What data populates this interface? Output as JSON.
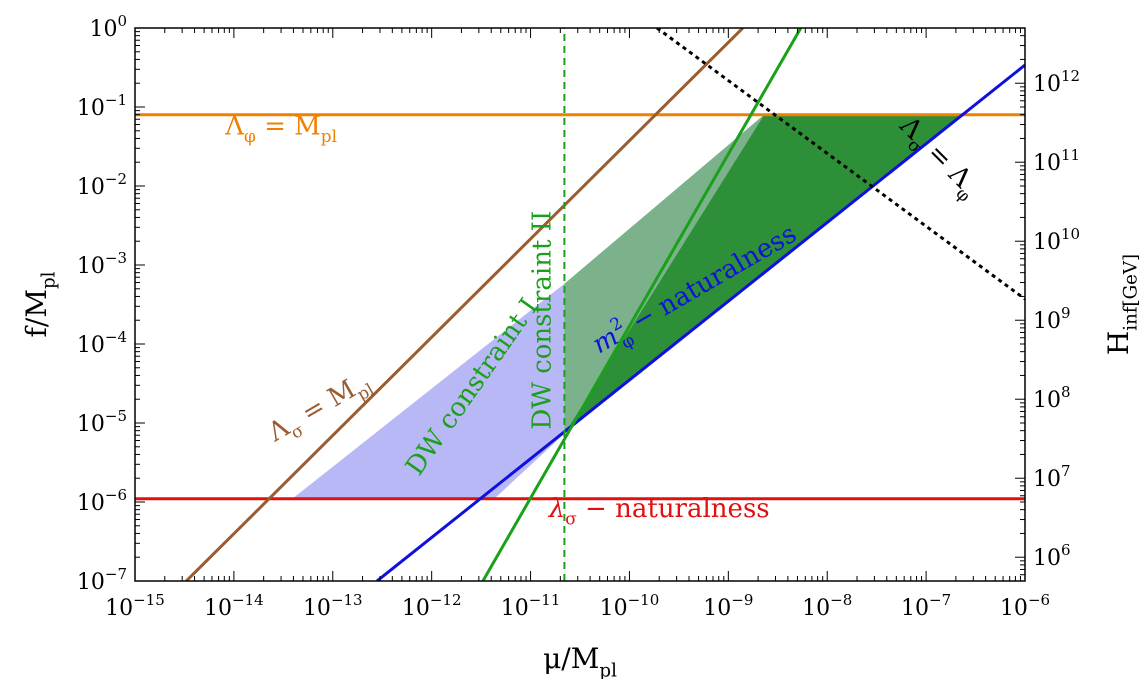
{
  "chart_data": {
    "type": "line",
    "x_axis": {
      "label": "μ/M_pl",
      "scale": "log",
      "range": [
        1e-15,
        1e-06
      ],
      "ticks": [
        {
          "value": 1e-15,
          "base": "10",
          "exp": "−15"
        },
        {
          "value": 1e-14,
          "base": "10",
          "exp": "−14"
        },
        {
          "value": 1e-13,
          "base": "10",
          "exp": "−13"
        },
        {
          "value": 1e-12,
          "base": "10",
          "exp": "−12"
        },
        {
          "value": 1e-11,
          "base": "10",
          "exp": "−11"
        },
        {
          "value": 1e-10,
          "base": "10",
          "exp": "−10"
        },
        {
          "value": 1e-09,
          "base": "10",
          "exp": "−9"
        },
        {
          "value": 1e-08,
          "base": "10",
          "exp": "−8"
        },
        {
          "value": 1e-07,
          "base": "10",
          "exp": "−7"
        },
        {
          "value": 1e-06,
          "base": "10",
          "exp": "−6"
        }
      ]
    },
    "y_axis": {
      "label": "f/M_pl",
      "scale": "log",
      "range": [
        1e-07,
        1
      ],
      "ticks": [
        {
          "value": 1,
          "base": "10",
          "exp": "0"
        },
        {
          "value": 0.1,
          "base": "10",
          "exp": "−1"
        },
        {
          "value": 0.01,
          "base": "10",
          "exp": "−2"
        },
        {
          "value": 0.001,
          "base": "10",
          "exp": "−3"
        },
        {
          "value": 0.0001,
          "base": "10",
          "exp": "−4"
        },
        {
          "value": 1e-05,
          "base": "10",
          "exp": "−5"
        },
        {
          "value": 1e-06,
          "base": "10",
          "exp": "−6"
        },
        {
          "value": 1e-07,
          "base": "10",
          "exp": "−7"
        }
      ]
    },
    "y2_axis": {
      "label": "H_inf[GeV]",
      "ticks": [
        {
          "at_y": 0.2,
          "base": "10",
          "exp": "12"
        },
        {
          "at_y": 0.02,
          "base": "10",
          "exp": "11"
        },
        {
          "at_y": 0.002,
          "base": "10",
          "exp": "10"
        },
        {
          "at_y": 0.0002,
          "base": "10",
          "exp": "9"
        },
        {
          "at_y": 2e-05,
          "base": "10",
          "exp": "8"
        },
        {
          "at_y": 2e-06,
          "base": "10",
          "exp": "7"
        },
        {
          "at_y": 2e-07,
          "base": "10",
          "exp": "6"
        }
      ]
    },
    "series": [
      {
        "name": "Λ_φ = M_pl",
        "color": "#f08000",
        "style": "solid",
        "points": [
          [
            1e-15,
            0.08
          ],
          [
            1e-06,
            0.08
          ]
        ]
      },
      {
        "name": "λ_σ − naturalness",
        "color": "#e01010",
        "style": "solid",
        "points": [
          [
            1e-15,
            1.1e-06
          ],
          [
            1e-06,
            1.1e-06
          ]
        ]
      },
      {
        "name": "Λ_σ = M_pl",
        "color": "#9a5c30",
        "style": "solid",
        "points": [
          [
            3.3e-15,
            1e-07
          ],
          [
            1.4e-09,
            1
          ]
        ]
      },
      {
        "name": "m²_φ − naturalness",
        "color": "#1010dd",
        "style": "solid",
        "points": [
          [
            2.8e-13,
            1e-07
          ],
          [
            1e-06,
            0.34
          ]
        ]
      },
      {
        "name": "DW constraint I",
        "color": "#1aa01a",
        "style": "solid",
        "points": [
          [
            3.3e-12,
            1e-07
          ],
          [
            5.4e-09,
            1
          ]
        ]
      },
      {
        "name": "DW constraint II",
        "color": "#1aa01a",
        "style": "dashed",
        "points": [
          [
            2.2e-11,
            1e-07
          ],
          [
            2.2e-11,
            1
          ]
        ]
      },
      {
        "name": "Λ_σ = Λ_φ",
        "color": "#000000",
        "style": "dotted",
        "points": [
          [
            1.9e-10,
            1
          ],
          [
            1e-06,
            0.00037
          ]
        ]
      }
    ],
    "regions": [
      {
        "color": "#b8b8f6",
        "points": [
          [
            3.9e-14,
            1.1e-06
          ],
          [
            4.3e-12,
            1.1e-06
          ],
          [
            2.2e-11,
            7.3e-06
          ],
          [
            2.2e-11,
            0.00058
          ]
        ]
      },
      {
        "color": "#5a9e6e",
        "opacity": 0.8,
        "points": [
          [
            2.2e-11,
            7.3e-06
          ],
          [
            2.2e-11,
            0.00058
          ],
          [
            2.3e-09,
            0.08
          ]
        ]
      },
      {
        "color": "#2d8f37",
        "points": [
          [
            2.2e-11,
            7.3e-06
          ],
          [
            2.3e-09,
            0.08
          ],
          [
            2.3e-07,
            0.08
          ]
        ]
      }
    ],
    "annotations": [
      {
        "text": "Λ_φ = M_pl",
        "color": "#f08000",
        "at": [
          3e-14,
          0.045
        ],
        "angle": 0
      },
      {
        "text": "Λ_σ = M_pl",
        "color": "#9a5c30",
        "at": [
          8e-14,
          1.3e-05
        ],
        "angle": -30
      },
      {
        "text": "λ_σ − naturalness",
        "color": "#e01010",
        "at": [
          2e-10,
          6.5e-07
        ],
        "angle": 0
      },
      {
        "text": "m²_φ − naturalness",
        "color": "#1010dd",
        "at": [
          5e-10,
          0.0004
        ],
        "angle": -30
      },
      {
        "text": "DW constraint I",
        "color": "#1aa01a",
        "at": [
          3e-12,
          2.5e-05
        ],
        "angle": -55
      },
      {
        "text": "DW constraint II",
        "color": "#1aa01a",
        "at": [
          1.6e-11,
          0.0002
        ],
        "angle": -90
      },
      {
        "text": "Λ_σ = Λ_φ",
        "color": "#000000",
        "at": [
          1.2e-07,
          0.02
        ],
        "angle": 45
      }
    ]
  }
}
